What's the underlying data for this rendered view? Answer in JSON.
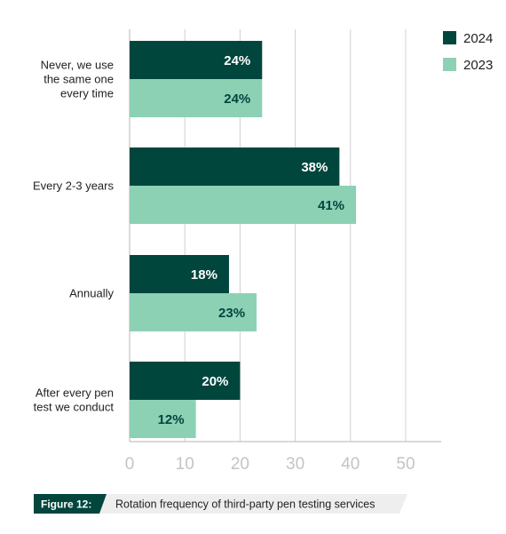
{
  "chart_data": {
    "type": "bar",
    "orientation": "horizontal",
    "categories": [
      [
        "Never, we use",
        "the same one",
        "every time"
      ],
      [
        "Every 2-3 years"
      ],
      [
        "Annually"
      ],
      [
        "After every pen",
        "test we conduct"
      ]
    ],
    "series": [
      {
        "name": "2024",
        "values": [
          24,
          38,
          18,
          20
        ],
        "labels": [
          "24%",
          "38%",
          "18%",
          "20%"
        ],
        "color": "#00463d",
        "label_color": "#ffffff"
      },
      {
        "name": "2023",
        "values": [
          24,
          41,
          23,
          12
        ],
        "labels": [
          "24%",
          "41%",
          "23%",
          "12%"
        ],
        "color": "#8dd1b5",
        "label_color": "#00463d"
      }
    ],
    "xlim": [
      0,
      55
    ],
    "xticks": [
      "0",
      "10",
      "20",
      "30",
      "40",
      "50"
    ],
    "grid": true,
    "legend_position": "top-right"
  },
  "caption": {
    "tag": "Figure 12:",
    "text": "Rotation frequency of third-party pen testing services",
    "tag_color": "#00463d",
    "band_color": "#eeeeee"
  }
}
